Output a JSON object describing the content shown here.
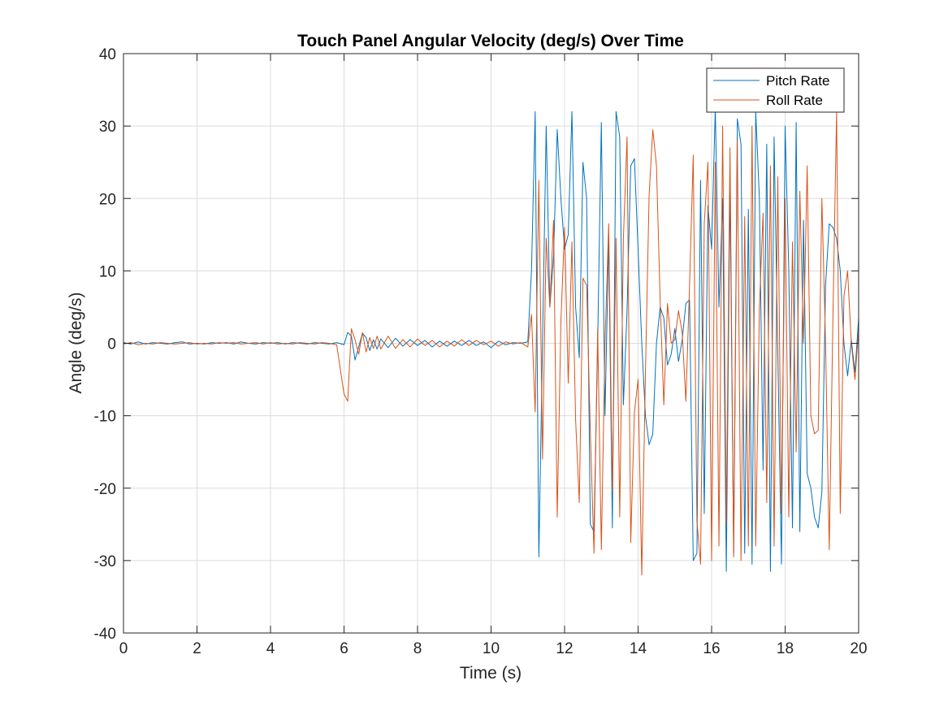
{
  "chart_data": {
    "type": "line",
    "title": "Touch Panel Angular Velocity (deg/s) Over Time",
    "xlabel": "Time (s)",
    "ylabel": "Angle (deg/s)",
    "xlim": [
      0,
      20
    ],
    "ylim": [
      -40,
      40
    ],
    "xticks": [
      0,
      2,
      4,
      6,
      8,
      10,
      12,
      14,
      16,
      18,
      20
    ],
    "yticks": [
      -40,
      -30,
      -20,
      -10,
      0,
      10,
      20,
      30,
      40
    ],
    "grid": true,
    "legend_position": "top-right",
    "series": [
      {
        "name": "Pitch Rate",
        "color": "#0072BD",
        "points": [
          [
            0.0,
            0.1
          ],
          [
            0.2,
            -0.1
          ],
          [
            0.4,
            0.2
          ],
          [
            0.6,
            -0.1
          ],
          [
            0.8,
            0.1
          ],
          [
            1.0,
            0.0
          ],
          [
            1.2,
            -0.1
          ],
          [
            1.4,
            0.1
          ],
          [
            1.6,
            0.2
          ],
          [
            1.8,
            -0.1
          ],
          [
            2.0,
            0.0
          ],
          [
            2.2,
            -0.1
          ],
          [
            2.4,
            0.1
          ],
          [
            2.6,
            0.0
          ],
          [
            2.8,
            0.1
          ],
          [
            3.0,
            -0.1
          ],
          [
            3.2,
            0.2
          ],
          [
            3.4,
            0.0
          ],
          [
            3.6,
            -0.1
          ],
          [
            3.8,
            0.1
          ],
          [
            4.0,
            0.0
          ],
          [
            4.2,
            0.1
          ],
          [
            4.4,
            -0.1
          ],
          [
            4.6,
            0.1
          ],
          [
            4.8,
            0.0
          ],
          [
            5.0,
            -0.1
          ],
          [
            5.2,
            0.1
          ],
          [
            5.4,
            0.0
          ],
          [
            5.6,
            -0.1
          ],
          [
            5.8,
            0.1
          ],
          [
            6.0,
            -0.2
          ],
          [
            6.1,
            1.5
          ],
          [
            6.2,
            1.0
          ],
          [
            6.3,
            -2.3
          ],
          [
            6.4,
            -0.5
          ],
          [
            6.5,
            1.4
          ],
          [
            6.6,
            0.8
          ],
          [
            6.7,
            -1.0
          ],
          [
            6.8,
            0.5
          ],
          [
            6.9,
            -0.8
          ],
          [
            7.0,
            0.6
          ],
          [
            7.2,
            -0.6
          ],
          [
            7.4,
            0.7
          ],
          [
            7.6,
            -0.4
          ],
          [
            7.8,
            0.5
          ],
          [
            8.0,
            -0.3
          ],
          [
            8.2,
            0.4
          ],
          [
            8.4,
            -0.5
          ],
          [
            8.6,
            0.3
          ],
          [
            8.8,
            -0.4
          ],
          [
            9.0,
            0.3
          ],
          [
            9.2,
            -0.3
          ],
          [
            9.4,
            0.4
          ],
          [
            9.6,
            -0.3
          ],
          [
            9.8,
            0.2
          ],
          [
            10.0,
            -0.6
          ],
          [
            10.2,
            0.3
          ],
          [
            10.4,
            -0.2
          ],
          [
            10.6,
            0.1
          ],
          [
            10.8,
            0.0
          ],
          [
            11.0,
            0.2
          ],
          [
            11.1,
            10.0
          ],
          [
            11.2,
            32.0
          ],
          [
            11.3,
            -29.5
          ],
          [
            11.4,
            0.0
          ],
          [
            11.5,
            30.0
          ],
          [
            11.6,
            5.0
          ],
          [
            11.7,
            12.0
          ],
          [
            11.8,
            29.5
          ],
          [
            11.9,
            20.0
          ],
          [
            12.0,
            13.0
          ],
          [
            12.1,
            15.0
          ],
          [
            12.2,
            32.0
          ],
          [
            12.3,
            5.0
          ],
          [
            12.4,
            -2.0
          ],
          [
            12.5,
            25.0
          ],
          [
            12.6,
            20.0
          ],
          [
            12.7,
            -25.0
          ],
          [
            12.8,
            -26.0
          ],
          [
            12.9,
            0.0
          ],
          [
            13.0,
            30.5
          ],
          [
            13.1,
            -10.0
          ],
          [
            13.2,
            14.5
          ],
          [
            13.3,
            -25.5
          ],
          [
            13.4,
            32.0
          ],
          [
            13.5,
            28.5
          ],
          [
            13.6,
            -8.5
          ],
          [
            13.7,
            4.5
          ],
          [
            13.8,
            24.5
          ],
          [
            13.9,
            25.5
          ],
          [
            14.0,
            13.0
          ],
          [
            14.1,
            0.0
          ],
          [
            14.2,
            -10.0
          ],
          [
            14.3,
            -14.0
          ],
          [
            14.4,
            -12.5
          ],
          [
            14.5,
            0.0
          ],
          [
            14.6,
            5.0
          ],
          [
            14.7,
            3.5
          ],
          [
            14.8,
            -3.0
          ],
          [
            14.9,
            -1.5
          ],
          [
            15.0,
            2.0
          ],
          [
            15.1,
            -2.5
          ],
          [
            15.2,
            0.5
          ],
          [
            15.3,
            5.5
          ],
          [
            15.4,
            6.0
          ],
          [
            15.5,
            -30.0
          ],
          [
            15.6,
            -29.0
          ],
          [
            15.7,
            22.5
          ],
          [
            15.8,
            -23.5
          ],
          [
            15.9,
            19.0
          ],
          [
            16.0,
            13.0
          ],
          [
            16.1,
            32.5
          ],
          [
            16.2,
            5.0
          ],
          [
            16.3,
            20.0
          ],
          [
            16.4,
            -31.5
          ],
          [
            16.5,
            22.0
          ],
          [
            16.6,
            -29.0
          ],
          [
            16.7,
            31.0
          ],
          [
            16.8,
            27.5
          ],
          [
            16.9,
            -29.0
          ],
          [
            17.0,
            18.5
          ],
          [
            17.1,
            -30.5
          ],
          [
            17.2,
            32.0
          ],
          [
            17.3,
            20.0
          ],
          [
            17.4,
            -17.5
          ],
          [
            17.5,
            27.5
          ],
          [
            17.6,
            -31.5
          ],
          [
            17.7,
            28.5
          ],
          [
            17.8,
            -1.0
          ],
          [
            17.9,
            -30.5
          ],
          [
            18.0,
            30.0
          ],
          [
            18.1,
            10.0
          ],
          [
            18.2,
            -25.5
          ],
          [
            18.3,
            30.5
          ],
          [
            18.4,
            -26.0
          ],
          [
            18.5,
            17.0
          ],
          [
            18.6,
            -18.0
          ],
          [
            18.7,
            -20.0
          ],
          [
            18.8,
            -24.0
          ],
          [
            18.9,
            -25.5
          ],
          [
            19.0,
            -20.5
          ],
          [
            19.1,
            8.0
          ],
          [
            19.2,
            16.5
          ],
          [
            19.3,
            16.0
          ],
          [
            19.4,
            14.5
          ],
          [
            19.5,
            10.0
          ],
          [
            19.6,
            0.0
          ],
          [
            19.7,
            -4.5
          ],
          [
            19.8,
            0.5
          ],
          [
            19.9,
            -4.0
          ],
          [
            20.0,
            3.5
          ]
        ]
      },
      {
        "name": "Roll Rate",
        "color": "#D95319",
        "points": [
          [
            0.0,
            -0.1
          ],
          [
            0.2,
            0.1
          ],
          [
            0.4,
            -0.2
          ],
          [
            0.6,
            0.0
          ],
          [
            0.8,
            -0.1
          ],
          [
            1.0,
            0.1
          ],
          [
            1.2,
            0.0
          ],
          [
            1.4,
            -0.1
          ],
          [
            1.6,
            0.0
          ],
          [
            1.8,
            0.1
          ],
          [
            2.0,
            -0.1
          ],
          [
            2.2,
            0.0
          ],
          [
            2.4,
            -0.1
          ],
          [
            2.6,
            0.1
          ],
          [
            2.8,
            0.0
          ],
          [
            3.0,
            0.1
          ],
          [
            3.2,
            -0.1
          ],
          [
            3.4,
            0.0
          ],
          [
            3.6,
            0.1
          ],
          [
            3.8,
            -0.1
          ],
          [
            4.0,
            0.1
          ],
          [
            4.2,
            -0.1
          ],
          [
            4.4,
            0.0
          ],
          [
            4.6,
            -0.1
          ],
          [
            4.8,
            0.1
          ],
          [
            5.0,
            0.0
          ],
          [
            5.2,
            -0.1
          ],
          [
            5.4,
            0.1
          ],
          [
            5.6,
            0.0
          ],
          [
            5.8,
            -0.2
          ],
          [
            6.0,
            -7.0
          ],
          [
            6.1,
            -8.0
          ],
          [
            6.2,
            2.0
          ],
          [
            6.3,
            0.5
          ],
          [
            6.4,
            -1.5
          ],
          [
            6.5,
            1.5
          ],
          [
            6.6,
            -1.2
          ],
          [
            6.7,
            0.8
          ],
          [
            6.8,
            -0.7
          ],
          [
            6.9,
            1.0
          ],
          [
            7.0,
            -0.8
          ],
          [
            7.2,
            1.0
          ],
          [
            7.4,
            -0.7
          ],
          [
            7.6,
            0.5
          ],
          [
            7.8,
            -0.5
          ],
          [
            8.0,
            0.6
          ],
          [
            8.2,
            -0.3
          ],
          [
            8.4,
            0.4
          ],
          [
            8.6,
            -0.5
          ],
          [
            8.8,
            0.3
          ],
          [
            9.0,
            -0.4
          ],
          [
            9.2,
            0.5
          ],
          [
            9.4,
            -0.3
          ],
          [
            9.6,
            0.4
          ],
          [
            9.8,
            -0.2
          ],
          [
            10.0,
            0.3
          ],
          [
            10.2,
            -0.4
          ],
          [
            10.4,
            0.2
          ],
          [
            10.6,
            -0.1
          ],
          [
            10.8,
            0.1
          ],
          [
            11.0,
            -0.5
          ],
          [
            11.1,
            4.0
          ],
          [
            11.2,
            -9.5
          ],
          [
            11.3,
            22.5
          ],
          [
            11.4,
            -16.0
          ],
          [
            11.5,
            14.5
          ],
          [
            11.6,
            5.0
          ],
          [
            11.7,
            17.0
          ],
          [
            11.8,
            -24.0
          ],
          [
            11.9,
            3.0
          ],
          [
            12.0,
            16.0
          ],
          [
            12.1,
            -5.5
          ],
          [
            12.2,
            14.0
          ],
          [
            12.3,
            -10.5
          ],
          [
            12.4,
            -22.0
          ],
          [
            12.5,
            9.0
          ],
          [
            12.6,
            8.0
          ],
          [
            12.7,
            -12.0
          ],
          [
            12.8,
            -29.0
          ],
          [
            12.9,
            2.0
          ],
          [
            13.0,
            -28.5
          ],
          [
            13.1,
            0.0
          ],
          [
            13.2,
            16.5
          ],
          [
            13.3,
            -20.5
          ],
          [
            13.4,
            14.5
          ],
          [
            13.5,
            -24.0
          ],
          [
            13.6,
            14.5
          ],
          [
            13.7,
            28.5
          ],
          [
            13.8,
            -27.5
          ],
          [
            13.9,
            -9.5
          ],
          [
            14.0,
            -5.0
          ],
          [
            14.1,
            -32.0
          ],
          [
            14.2,
            -4.0
          ],
          [
            14.3,
            20.5
          ],
          [
            14.4,
            29.5
          ],
          [
            14.5,
            24.5
          ],
          [
            14.6,
            6.0
          ],
          [
            14.7,
            -8.5
          ],
          [
            14.8,
            5.5
          ],
          [
            14.9,
            0.0
          ],
          [
            15.0,
            0.5
          ],
          [
            15.1,
            4.5
          ],
          [
            15.2,
            1.5
          ],
          [
            15.3,
            -8.0
          ],
          [
            15.4,
            8.0
          ],
          [
            15.5,
            26.0
          ],
          [
            15.6,
            -24.5
          ],
          [
            15.7,
            -30.5
          ],
          [
            15.8,
            16.5
          ],
          [
            15.9,
            25.0
          ],
          [
            16.0,
            -30.0
          ],
          [
            16.1,
            25.0
          ],
          [
            16.2,
            -28.0
          ],
          [
            16.3,
            30.0
          ],
          [
            16.4,
            -25.0
          ],
          [
            16.5,
            27.0
          ],
          [
            16.6,
            -29.5
          ],
          [
            16.7,
            28.0
          ],
          [
            16.8,
            -30.0
          ],
          [
            16.9,
            17.5
          ],
          [
            17.0,
            -28.0
          ],
          [
            17.1,
            30.0
          ],
          [
            17.2,
            -28.0
          ],
          [
            17.3,
            5.0
          ],
          [
            17.4,
            18.0
          ],
          [
            17.5,
            -22.0
          ],
          [
            17.6,
            24.5
          ],
          [
            17.7,
            -28.0
          ],
          [
            17.8,
            23.0
          ],
          [
            17.9,
            -23.5
          ],
          [
            18.0,
            20.0
          ],
          [
            18.1,
            -24.0
          ],
          [
            18.2,
            14.0
          ],
          [
            18.3,
            -15.0
          ],
          [
            18.4,
            21.0
          ],
          [
            18.5,
            0.0
          ],
          [
            18.6,
            24.5
          ],
          [
            18.7,
            -10.0
          ],
          [
            18.8,
            -12.5
          ],
          [
            18.9,
            -12.0
          ],
          [
            19.0,
            20.0
          ],
          [
            19.1,
            0.0
          ],
          [
            19.2,
            -28.5
          ],
          [
            19.3,
            3.5
          ],
          [
            19.4,
            32.0
          ],
          [
            19.5,
            -23.5
          ],
          [
            19.6,
            6.5
          ],
          [
            19.7,
            10.0
          ],
          [
            19.8,
            0.0
          ],
          [
            19.9,
            -5.0
          ],
          [
            20.0,
            2.0
          ]
        ]
      }
    ]
  }
}
